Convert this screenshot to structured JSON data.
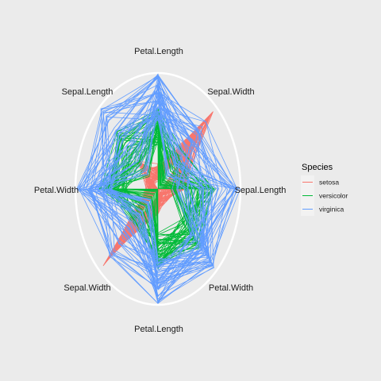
{
  "chart_data": {
    "type": "radar",
    "axes": [
      "Petal.Length",
      "Sepal.Width",
      "Sepal.Length",
      "Petal.Width",
      "Petal.Length",
      "Sepal.Width",
      "Petal.Width",
      "Sepal.Length"
    ],
    "grid": false,
    "legend": {
      "title": "Species",
      "position": "right",
      "entries": [
        {
          "name": "setosa",
          "color": "#F8766D"
        },
        {
          "name": "versicolor",
          "color": "#00BA38"
        },
        {
          "name": "virginica",
          "color": "#619CFF"
        }
      ]
    },
    "series": [
      {
        "name": "setosa",
        "color": "#F8766D",
        "approx_range": {
          "Petal.Length": [
            0.06,
            0.22
          ],
          "Sepal.Width": [
            0.35,
            0.95
          ],
          "Sepal.Length": [
            0.05,
            0.35
          ],
          "Petal.Width": [
            0.0,
            0.15
          ]
        }
      },
      {
        "name": "versicolor",
        "color": "#00BA38",
        "approx_range": {
          "Petal.Length": [
            0.38,
            0.7
          ],
          "Sepal.Width": [
            0.0,
            0.45
          ],
          "Sepal.Length": [
            0.15,
            0.72
          ],
          "Petal.Width": [
            0.38,
            0.72
          ]
        }
      },
      {
        "name": "virginica",
        "color": "#619CFF",
        "approx_range": {
          "Petal.Length": [
            0.59,
            1.0
          ],
          "Sepal.Width": [
            0.1,
            0.85
          ],
          "Sepal.Length": [
            0.17,
            1.0
          ],
          "Petal.Width": [
            0.55,
            1.0
          ]
        }
      }
    ]
  }
}
